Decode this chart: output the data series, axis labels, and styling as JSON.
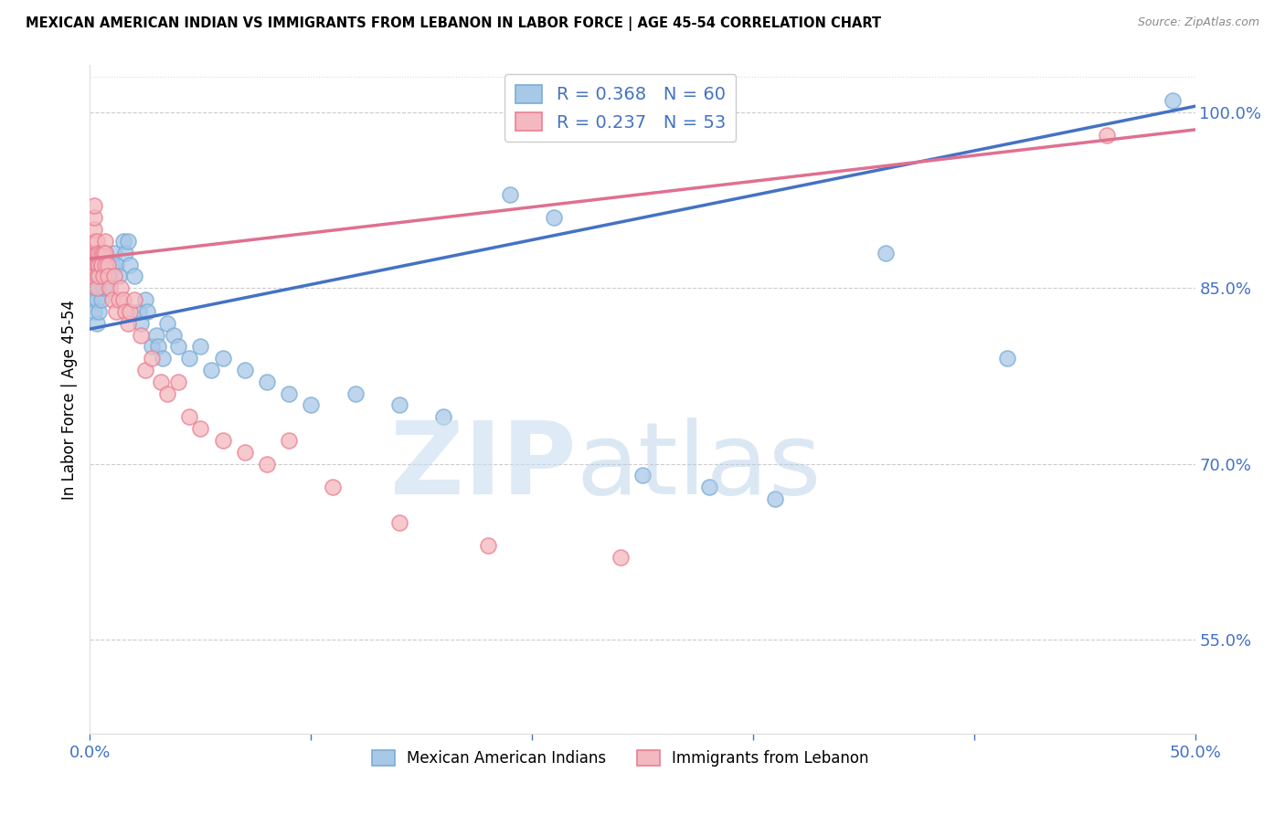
{
  "title": "MEXICAN AMERICAN INDIAN VS IMMIGRANTS FROM LEBANON IN LABOR FORCE | AGE 45-54 CORRELATION CHART",
  "source": "Source: ZipAtlas.com",
  "ylabel": "In Labor Force | Age 45-54",
  "xlim": [
    0.0,
    0.5
  ],
  "ylim": [
    0.47,
    1.04
  ],
  "xticks": [
    0.0,
    0.1,
    0.2,
    0.3,
    0.4,
    0.5
  ],
  "xtick_labels": [
    "0.0%",
    "",
    "",
    "",
    "",
    "50.0%"
  ],
  "yticks_right": [
    0.55,
    0.7,
    0.85,
    1.0
  ],
  "ytick_labels_right": [
    "55.0%",
    "70.0%",
    "85.0%",
    "100.0%"
  ],
  "blue_color": "#a8c8e8",
  "blue_edge_color": "#7aadd4",
  "pink_color": "#f4b8c0",
  "pink_edge_color": "#e88090",
  "blue_line_color": "#4472c4",
  "pink_line_color": "#e07090",
  "blue_R": 0.368,
  "blue_N": 60,
  "pink_R": 0.237,
  "pink_N": 53,
  "blue_line_x0": 0.0,
  "blue_line_y0": 0.815,
  "blue_line_x1": 0.5,
  "blue_line_y1": 1.005,
  "pink_line_x0": 0.0,
  "pink_line_y0": 0.875,
  "pink_line_x1": 0.5,
  "pink_line_y1": 0.985,
  "blue_x": [
    0.001,
    0.001,
    0.002,
    0.002,
    0.002,
    0.003,
    0.003,
    0.003,
    0.003,
    0.004,
    0.004,
    0.004,
    0.005,
    0.005,
    0.005,
    0.006,
    0.006,
    0.007,
    0.007,
    0.008,
    0.009,
    0.01,
    0.011,
    0.012,
    0.013,
    0.015,
    0.016,
    0.017,
    0.018,
    0.02,
    0.022,
    0.023,
    0.025,
    0.026,
    0.028,
    0.03,
    0.031,
    0.033,
    0.035,
    0.038,
    0.04,
    0.045,
    0.05,
    0.055,
    0.06,
    0.07,
    0.08,
    0.09,
    0.1,
    0.12,
    0.14,
    0.16,
    0.19,
    0.21,
    0.25,
    0.28,
    0.31,
    0.36,
    0.415,
    0.49
  ],
  "blue_y": [
    0.86,
    0.84,
    0.87,
    0.85,
    0.83,
    0.88,
    0.86,
    0.84,
    0.82,
    0.87,
    0.85,
    0.83,
    0.88,
    0.86,
    0.84,
    0.87,
    0.85,
    0.88,
    0.86,
    0.85,
    0.86,
    0.87,
    0.88,
    0.87,
    0.86,
    0.89,
    0.88,
    0.89,
    0.87,
    0.86,
    0.83,
    0.82,
    0.84,
    0.83,
    0.8,
    0.81,
    0.8,
    0.79,
    0.82,
    0.81,
    0.8,
    0.79,
    0.8,
    0.78,
    0.79,
    0.78,
    0.77,
    0.76,
    0.75,
    0.76,
    0.75,
    0.74,
    0.93,
    0.91,
    0.69,
    0.68,
    0.67,
    0.88,
    0.79,
    1.01
  ],
  "pink_x": [
    0.001,
    0.001,
    0.001,
    0.002,
    0.002,
    0.002,
    0.002,
    0.003,
    0.003,
    0.003,
    0.003,
    0.003,
    0.004,
    0.004,
    0.004,
    0.005,
    0.005,
    0.005,
    0.006,
    0.006,
    0.007,
    0.007,
    0.007,
    0.008,
    0.008,
    0.009,
    0.01,
    0.011,
    0.012,
    0.013,
    0.014,
    0.015,
    0.016,
    0.017,
    0.018,
    0.02,
    0.023,
    0.025,
    0.028,
    0.032,
    0.035,
    0.04,
    0.045,
    0.05,
    0.06,
    0.07,
    0.08,
    0.09,
    0.11,
    0.14,
    0.18,
    0.24,
    0.46
  ],
  "pink_y": [
    0.87,
    0.86,
    0.88,
    0.89,
    0.9,
    0.91,
    0.92,
    0.87,
    0.88,
    0.89,
    0.86,
    0.85,
    0.88,
    0.87,
    0.86,
    0.87,
    0.88,
    0.87,
    0.88,
    0.86,
    0.89,
    0.88,
    0.87,
    0.87,
    0.86,
    0.85,
    0.84,
    0.86,
    0.83,
    0.84,
    0.85,
    0.84,
    0.83,
    0.82,
    0.83,
    0.84,
    0.81,
    0.78,
    0.79,
    0.77,
    0.76,
    0.77,
    0.74,
    0.73,
    0.72,
    0.71,
    0.7,
    0.72,
    0.68,
    0.65,
    0.63,
    0.62,
    0.98
  ],
  "watermark_zip_color": "#c8dcf0",
  "watermark_atlas_color": "#b0cce8"
}
